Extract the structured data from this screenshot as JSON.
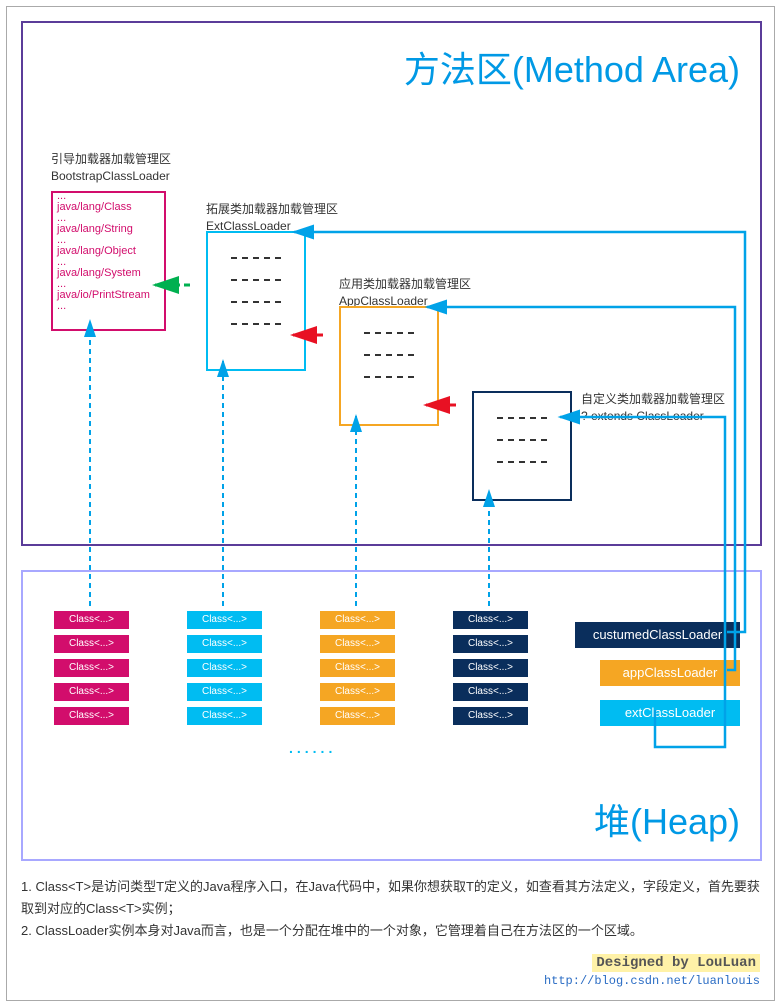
{
  "titles": {
    "method": "方法区(Method Area)",
    "heap": "堆(Heap)"
  },
  "bootstrap": {
    "label_cn": "引导加载器加载管理区",
    "label_en": "BootstrapClassLoader",
    "items": [
      "java/lang/Class",
      "java/lang/String",
      "java/lang/Object",
      "java/lang/System",
      "java/io/PrintStream"
    ],
    "color": "#d20d6c"
  },
  "ext": {
    "label_cn": "拓展类加载器加载管理区",
    "label_en": "ExtClassLoader",
    "color": "#00bcf2"
  },
  "app": {
    "label_cn": "应用类加载器加载管理区",
    "label_en": "AppClassLoader",
    "color": "#f5a623"
  },
  "custom": {
    "label_cn": "自定义类加载器加载管理区",
    "label_en": "? extends ClassLoader",
    "color": "#0a2e5c"
  },
  "heap": {
    "class_label": "Class<...>",
    "columns": [
      {
        "color": "#d20d6c",
        "count": 5
      },
      {
        "color": "#00bcf2",
        "count": 5
      },
      {
        "color": "#f5a623",
        "count": 5
      },
      {
        "color": "#0a2e5c",
        "count": 5
      }
    ],
    "loaders": [
      {
        "label": "custumedClassLoader",
        "color": "#0a2e5c"
      },
      {
        "label": "appClassLoader",
        "color": "#f5a623"
      },
      {
        "label": "extClassLoader",
        "color": "#00bcf2"
      }
    ],
    "dots": "......"
  },
  "footnotes": {
    "line1": "1. Class<T>是访问类型T定义的Java程序入口，在Java代码中，如果你想获取T的定义，如查看其方法定义，字段定义，首先要获取到对应的Class<T>实例；",
    "line2": "2. ClassLoader实例本身对Java而言，也是一个分配在堆中的一个对象，它管理着自己在方法区的一个区域。"
  },
  "credit": {
    "by": "Designed by LouLuan",
    "url": "http://blog.csdn.net/luanlouis"
  },
  "arrows": {
    "red": "#e81123",
    "green": "#00b050",
    "blue": "#00a2e8",
    "dash": "#00a2e8"
  }
}
